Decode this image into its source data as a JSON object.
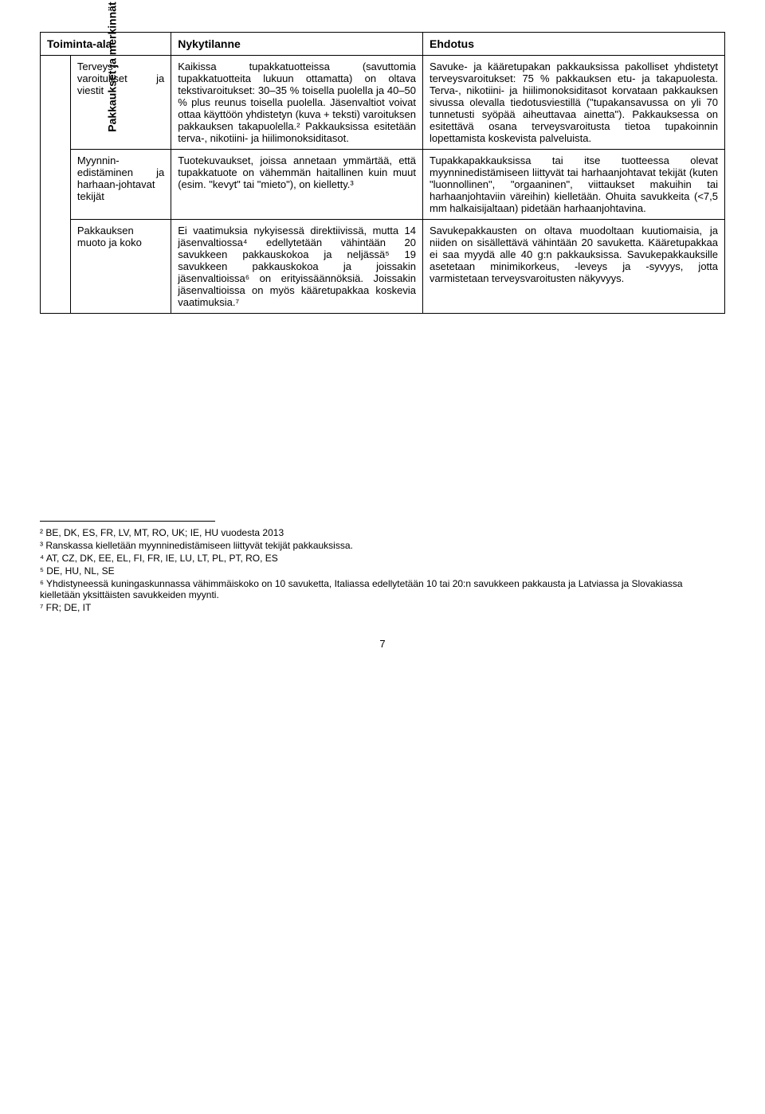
{
  "table": {
    "headers": [
      "Toiminta-ala",
      "Nykytilanne",
      "Ehdotus"
    ],
    "group_label": "Pakkaukset ja merkinnät",
    "rows": [
      {
        "subarea": "Terveys-varoitukset ja viestit",
        "current": "Kaikissa tupakkatuotteissa (savuttomia tupakkatuotteita lukuun ottamatta) on oltava tekstivaroitukset: 30–35 % toisella puolella ja 40–50 % plus reunus toisella puolella. Jäsenvaltiot voivat ottaa käyttöön yhdistetyn (kuva + teksti) varoituksen pakkauksen takapuolella.² Pakkauksissa esitetään terva-, nikotiini- ja hiilimonoksiditasot.",
        "proposal": "Savuke- ja kääretupakan pakkauksissa pakolliset yhdistetyt terveysvaroitukset: 75 % pakkauksen etu- ja takapuolesta. Terva-, nikotiini- ja hiilimonoksiditasot korvataan pakkauksen sivussa olevalla tiedotusviestillä (\"tupakansavussa on yli 70 tunnetusti syöpää aiheuttavaa ainetta\"). Pakkauksessa on esitettävä osana terveysvaroitusta tietoa tupakoinnin lopettamista koskevista palveluista."
      },
      {
        "subarea": "Myynnin-edistäminen ja harhaan-johtavat tekijät",
        "current": "Tuotekuvaukset, joissa annetaan ymmärtää, että tupakkatuote on vähemmän haitallinen kuin muut (esim. \"kevyt\" tai \"mieto\"), on kielletty.³",
        "proposal": "Tupakkapakkauksissa tai itse tuotteessa olevat myynninedistämiseen liittyvät tai harhaanjohtavat tekijät (kuten \"luonnollinen\", \"orgaaninen\", viittaukset makuihin tai harhaanjohtaviin väreihin) kielletään. Ohuita savukkeita (<7,5 mm halkaisijaltaan) pidetään harhaanjohtavina."
      },
      {
        "subarea": "Pakkauksen muoto ja koko",
        "current": "Ei vaatimuksia nykyisessä direktiivissä, mutta 14 jäsenvaltiossa⁴ edellytetään vähintään 20 savukkeen pakkauskokoa ja neljässä⁵ 19 savukkeen pakkauskokoa ja joissakin jäsenvaltioissa⁶ on erityissäännöksiä. Joissakin jäsenvaltioissa on myös kääretupakkaa koskevia vaatimuksia.⁷",
        "proposal": "Savukepakkausten on oltava muodoltaan kuutiomaisia, ja niiden on sisällettävä vähintään 20 savuketta. Kääretupakkaa ei saa myydä alle 40 g:n pakkauksissa. Savukepakkauksille asetetaan minimikorkeus, -leveys ja -syvyys, jotta varmistetaan terveysvaroitusten näkyvyys."
      }
    ]
  },
  "footnotes": [
    "² BE, DK, ES, FR, LV, MT, RO, UK; IE, HU vuodesta 2013",
    "³ Ranskassa kielletään myynninedistämiseen liittyvät tekijät pakkauksissa.",
    "⁴ AT, CZ, DK, EE, EL, FI, FR, IE, LU, LT, PL, PT, RO, ES",
    "⁵ DE, HU, NL, SE",
    "⁶ Yhdistyneessä kuningaskunnassa vähimmäiskoko on 10 savuketta, Italiassa edellytetään 10 tai 20:n savukkeen pakkausta ja Latviassa ja Slovakiassa kielletään yksittäisten savukkeiden myynti.",
    "⁷ FR; DE, IT"
  ],
  "page_number": "7"
}
